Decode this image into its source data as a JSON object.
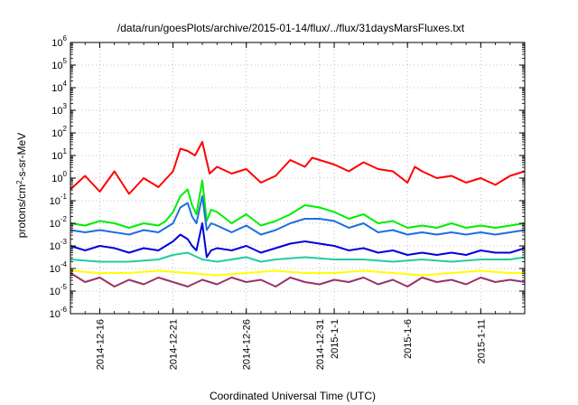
{
  "chart_data": {
    "type": "line",
    "title": "/data/run/goesPlots/archive/2015-01-14/flux/../flux/31daysMarsFluxes.txt",
    "xlabel": "Coordinated Universal Time (UTC)",
    "ylabel": {
      "prefix": "protons/cm",
      "sup": "2",
      "suffix": "-s-sr-MeV"
    },
    "y_log_scale": true,
    "ylim_exponent": [
      -6,
      6
    ],
    "y_ticks": [
      {
        "base": "10",
        "exp": "-6"
      },
      {
        "base": "10",
        "exp": "-5"
      },
      {
        "base": "10",
        "exp": "-4"
      },
      {
        "base": "10",
        "exp": "-3"
      },
      {
        "base": "10",
        "exp": "-2"
      },
      {
        "base": "10",
        "exp": "-1"
      },
      {
        "base": "10",
        "exp": "0"
      },
      {
        "base": "10",
        "exp": "1"
      },
      {
        "base": "10",
        "exp": "2"
      },
      {
        "base": "10",
        "exp": "3"
      },
      {
        "base": "10",
        "exp": "4"
      },
      {
        "base": "10",
        "exp": "5"
      },
      {
        "base": "10",
        "exp": "6"
      }
    ],
    "x_range_days": [
      0,
      31
    ],
    "x_ticks": [
      {
        "day": 2,
        "label": "2014-12-16"
      },
      {
        "day": 7,
        "label": "2014-12-21"
      },
      {
        "day": 12,
        "label": "2014-12-26"
      },
      {
        "day": 17,
        "label": "2014-12-31"
      },
      {
        "day": 18,
        "label": "2015-1-1"
      },
      {
        "day": 23,
        "label": "2015-1-6"
      },
      {
        "day": 28,
        "label": "2015-1-11"
      }
    ],
    "grid": true,
    "series": [
      {
        "color": "#ff0000",
        "x": [
          0,
          1,
          2,
          3,
          4,
          5,
          6,
          7,
          7.5,
          8,
          8.5,
          9,
          9.5,
          10,
          11,
          12,
          13,
          14,
          15,
          16,
          16.5,
          17,
          17.5,
          18,
          19,
          20,
          21,
          22,
          23,
          23.5,
          24,
          25,
          26,
          27,
          28,
          29,
          30,
          31
        ],
        "log10_y": [
          -0.5,
          0.1,
          -0.6,
          0.3,
          -0.7,
          0.0,
          -0.4,
          0.3,
          1.3,
          1.2,
          1.0,
          1.6,
          0.2,
          0.5,
          0.2,
          0.4,
          -0.2,
          0.1,
          0.8,
          0.5,
          0.9,
          0.8,
          0.7,
          0.6,
          0.3,
          0.7,
          0.4,
          0.3,
          -0.2,
          0.5,
          0.3,
          0.0,
          0.1,
          -0.2,
          0.0,
          -0.3,
          0.1,
          0.3
        ]
      },
      {
        "color": "#00ee00",
        "x": [
          0,
          1,
          2,
          3,
          4,
          5,
          6,
          6.5,
          7,
          7.5,
          8,
          8.3,
          8.6,
          9,
          9.3,
          9.6,
          10,
          11,
          12,
          13,
          14,
          15,
          16,
          17,
          18,
          19,
          20,
          21,
          22,
          23,
          24,
          25,
          26,
          27,
          28,
          29,
          30,
          31
        ],
        "log10_y": [
          -2.0,
          -2.1,
          -1.9,
          -2.0,
          -2.2,
          -2.0,
          -2.1,
          -1.9,
          -1.5,
          -0.8,
          -0.5,
          -1.2,
          -1.6,
          -0.1,
          -1.9,
          -1.4,
          -1.5,
          -2.0,
          -1.6,
          -2.1,
          -1.9,
          -1.6,
          -1.2,
          -1.3,
          -1.5,
          -1.8,
          -1.6,
          -2.0,
          -1.9,
          -2.2,
          -2.1,
          -2.2,
          -2.0,
          -2.2,
          -2.1,
          -2.2,
          -2.1,
          -2.0
        ]
      },
      {
        "color": "#1e6fe0",
        "x": [
          0,
          1,
          2,
          3,
          4,
          5,
          6,
          6.5,
          7,
          7.5,
          8,
          8.3,
          8.6,
          9,
          9.3,
          9.6,
          10,
          11,
          12,
          13,
          14,
          15,
          16,
          17,
          18,
          19,
          20,
          21,
          22,
          23,
          24,
          25,
          26,
          27,
          28,
          29,
          30,
          31
        ],
        "log10_y": [
          -2.3,
          -2.4,
          -2.3,
          -2.4,
          -2.5,
          -2.3,
          -2.4,
          -2.2,
          -2.0,
          -1.3,
          -1.1,
          -1.7,
          -2.0,
          -0.8,
          -2.3,
          -2.0,
          -2.1,
          -2.4,
          -2.1,
          -2.5,
          -2.3,
          -2.0,
          -1.8,
          -1.8,
          -1.9,
          -2.2,
          -2.0,
          -2.4,
          -2.3,
          -2.5,
          -2.4,
          -2.5,
          -2.4,
          -2.5,
          -2.4,
          -2.5,
          -2.4,
          -2.3
        ]
      },
      {
        "color": "#0000dd",
        "x": [
          0,
          1,
          2,
          3,
          4,
          5,
          6,
          6.5,
          7,
          7.5,
          8,
          8.3,
          8.6,
          9,
          9.3,
          9.6,
          10,
          11,
          12,
          13,
          14,
          15,
          16,
          17,
          18,
          19,
          20,
          21,
          22,
          23,
          24,
          25,
          26,
          27,
          28,
          29,
          30,
          31
        ],
        "log10_y": [
          -3.0,
          -3.2,
          -3.0,
          -3.1,
          -3.3,
          -3.1,
          -3.2,
          -3.0,
          -2.8,
          -2.5,
          -2.7,
          -3.0,
          -3.2,
          -2.0,
          -3.5,
          -3.2,
          -3.1,
          -3.2,
          -3.0,
          -3.3,
          -3.1,
          -2.9,
          -2.8,
          -2.9,
          -3.0,
          -3.2,
          -3.1,
          -3.3,
          -3.2,
          -3.4,
          -3.3,
          -3.4,
          -3.3,
          -3.4,
          -3.2,
          -3.3,
          -3.3,
          -3.1
        ]
      },
      {
        "color": "#22cca0",
        "x": [
          0,
          2,
          4,
          6,
          7,
          8,
          9,
          10,
          11,
          12,
          13,
          14,
          16,
          18,
          20,
          22,
          24,
          26,
          28,
          30,
          31
        ],
        "log10_y": [
          -3.6,
          -3.7,
          -3.7,
          -3.6,
          -3.4,
          -3.3,
          -3.6,
          -3.7,
          -3.6,
          -3.5,
          -3.7,
          -3.6,
          -3.5,
          -3.6,
          -3.6,
          -3.7,
          -3.6,
          -3.7,
          -3.6,
          -3.6,
          -3.5
        ]
      },
      {
        "color": "#ffff00",
        "x": [
          0,
          2,
          4,
          6,
          8,
          10,
          12,
          14,
          16,
          18,
          20,
          22,
          24,
          26,
          28,
          30,
          31
        ],
        "log10_y": [
          -4.1,
          -4.2,
          -4.2,
          -4.1,
          -4.2,
          -4.3,
          -4.2,
          -4.1,
          -4.2,
          -4.2,
          -4.1,
          -4.2,
          -4.3,
          -4.2,
          -4.1,
          -4.2,
          -4.2
        ]
      },
      {
        "color": "#993366",
        "x": [
          0,
          1,
          2,
          3,
          4,
          5,
          6,
          7,
          8,
          9,
          10,
          11,
          12,
          13,
          14,
          15,
          16,
          17,
          18,
          19,
          20,
          21,
          22,
          23,
          24,
          25,
          26,
          27,
          28,
          29,
          30,
          31
        ],
        "log10_y": [
          -4.2,
          -4.6,
          -4.4,
          -4.8,
          -4.5,
          -4.7,
          -4.4,
          -4.6,
          -4.8,
          -4.5,
          -4.7,
          -4.4,
          -4.6,
          -4.5,
          -4.8,
          -4.4,
          -4.6,
          -4.7,
          -4.5,
          -4.6,
          -4.4,
          -4.7,
          -4.5,
          -4.8,
          -4.4,
          -4.6,
          -4.5,
          -4.7,
          -4.4,
          -4.6,
          -4.5,
          -4.6
        ]
      }
    ]
  }
}
